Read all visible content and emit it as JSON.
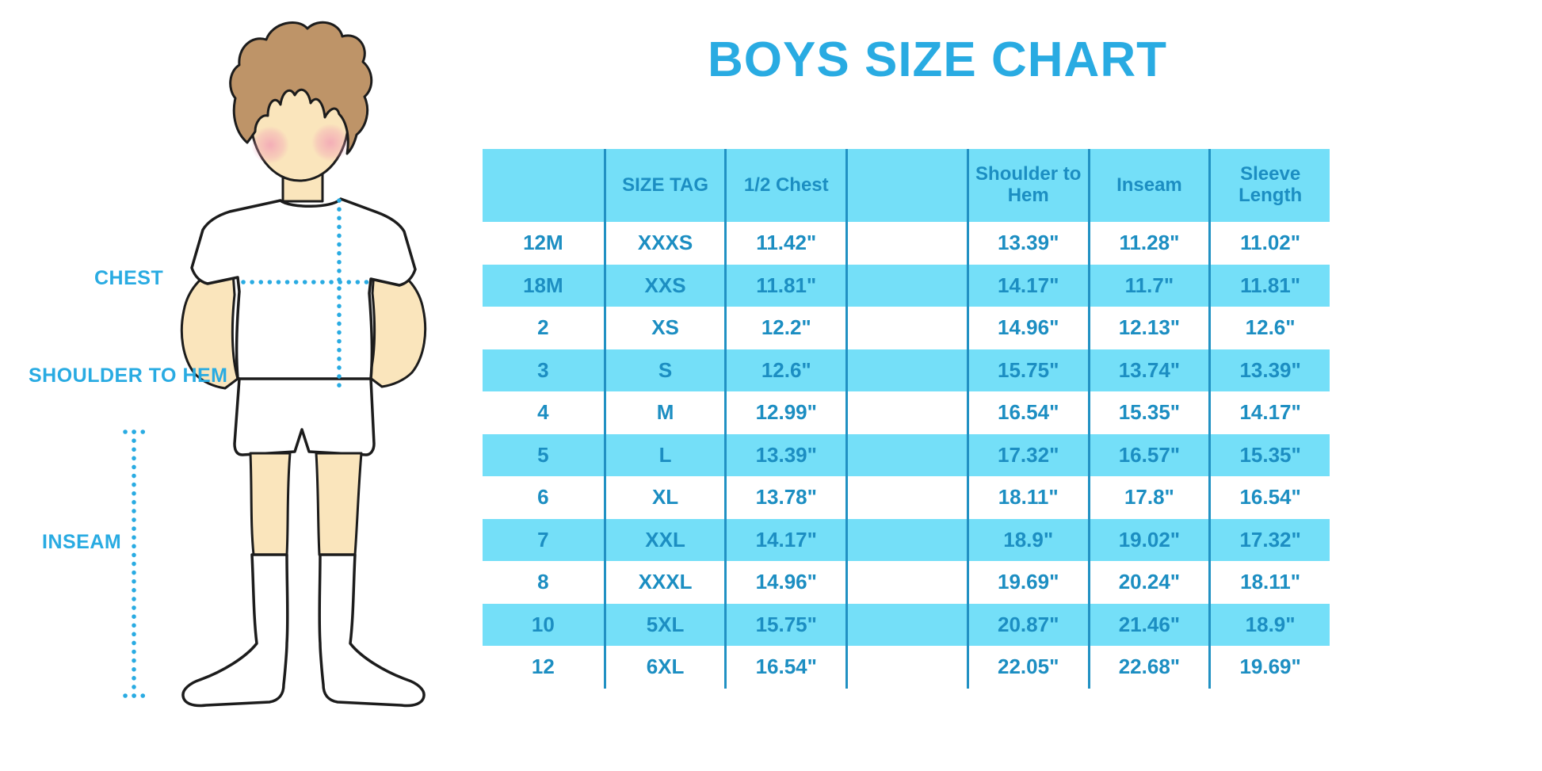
{
  "page": {
    "background": "#FFFFFF"
  },
  "chart_data": {
    "type": "table",
    "title": "BOYS SIZE CHART",
    "columns": [
      "",
      "SIZE TAG",
      "1/2 Chest",
      "Shoulder to Hem",
      "Inseam",
      "Sleeve Length"
    ],
    "rows": [
      [
        "12M",
        "XXXS",
        "11.42\"",
        "13.39\"",
        "11.28\"",
        "11.02\""
      ],
      [
        "18M",
        "XXS",
        "11.81\"",
        "14.17\"",
        "11.7\"",
        "11.81\""
      ],
      [
        "2",
        "XS",
        "12.2\"",
        "14.96\"",
        "12.13\"",
        "12.6\""
      ],
      [
        "3",
        "S",
        "12.6\"",
        "15.75\"",
        "13.74\"",
        "13.39\""
      ],
      [
        "4",
        "M",
        "12.99\"",
        "16.54\"",
        "15.35\"",
        "14.17\""
      ],
      [
        "5",
        "L",
        "13.39\"",
        "17.32\"",
        "16.57\"",
        "15.35\""
      ],
      [
        "6",
        "XL",
        "13.78\"",
        "18.11\"",
        "17.8\"",
        "16.54\""
      ],
      [
        "7",
        "XXL",
        "14.17\"",
        "18.9\"",
        "19.02\"",
        "17.32\""
      ],
      [
        "8",
        "XXXL",
        "14.96\"",
        "19.69\"",
        "20.24\"",
        "18.11\""
      ],
      [
        "10",
        "5XL",
        "15.75\"",
        "20.87\"",
        "21.46\"",
        "18.9\""
      ],
      [
        "12",
        "6XL",
        "16.54\"",
        "22.05\"",
        "22.68\"",
        "19.69\""
      ]
    ],
    "layout_hints": {
      "striped_rows": true,
      "first_striped_row_index": 1,
      "empty_spacer_column_after": "1/2 Chest"
    }
  },
  "figure": {
    "labels": {
      "chest": "CHEST",
      "shoulder_to_hem": "SHOULDER TO HEM",
      "inseam": "INSEAM"
    }
  },
  "colors": {
    "accent": "#29ABE2",
    "table_text": "#1C8EC2",
    "stripe": "#74DFF8",
    "border": "#2191C3",
    "skin": "#FAE5BC",
    "hair": "#BE9468",
    "blush": "#F2A0B5"
  }
}
